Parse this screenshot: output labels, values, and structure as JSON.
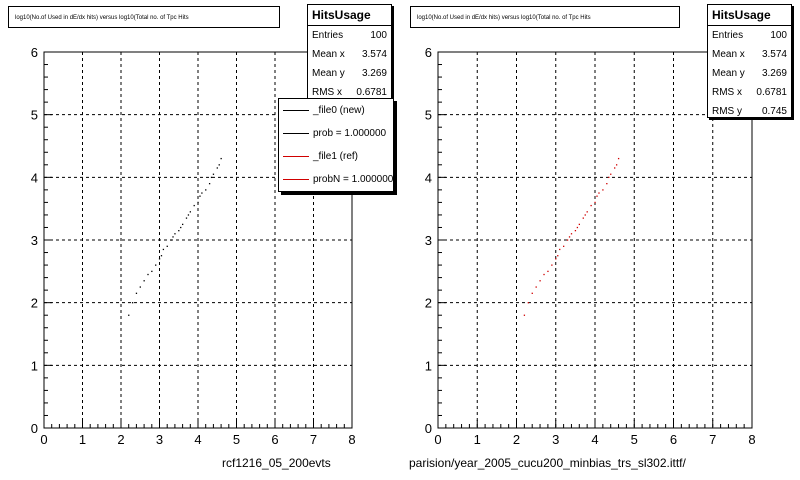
{
  "panels": [
    {
      "title": "log10(No.of Used in dE/dx hits) versus log10(Total no. of Tpc Hits",
      "stats": {
        "name": "HitsUsage",
        "rows": [
          {
            "label": "Entries",
            "value": "100"
          },
          {
            "label": "Mean x",
            "value": "3.574"
          },
          {
            "label": "Mean y",
            "value": "3.269"
          },
          {
            "label": "RMS x",
            "value": "0.6781"
          }
        ]
      },
      "legend": [
        {
          "label": "_file0 (new)",
          "color": "#000000"
        },
        {
          "label": "prob = 1.000000",
          "color": "#000000"
        },
        {
          "label": "_file1 (ref)",
          "color": "#d00000"
        },
        {
          "label": "probN = 1.000000",
          "color": "#d00000"
        }
      ],
      "footer": "rcf1216_05_200evts"
    },
    {
      "title": "log10(No.of Used in dE/dx hits) versus log10(Total no. of Tpc Hits",
      "stats": {
        "name": "HitsUsage",
        "rows": [
          {
            "label": "Entries",
            "value": "100"
          },
          {
            "label": "Mean x",
            "value": "3.574"
          },
          {
            "label": "Mean y",
            "value": "3.269"
          },
          {
            "label": "RMS x",
            "value": "0.6781"
          },
          {
            "label": "RMS y",
            "value": "0.745"
          }
        ]
      },
      "footer": "parision/year_2005_cucu200_minbias_trs_sl302.ittf/"
    }
  ],
  "chart_data": [
    {
      "type": "scatter",
      "title": "log10(No.of Used in dE/dx hits) versus log10(Total no. of Tpc Hits",
      "xlabel": "",
      "ylabel": "",
      "xlim": [
        0,
        8
      ],
      "ylim": [
        0,
        6
      ],
      "xticks": [
        0,
        1,
        2,
        3,
        4,
        5,
        6,
        7,
        8
      ],
      "yticks": [
        0,
        1,
        2,
        3,
        4,
        5,
        6
      ],
      "grid": true,
      "legend_position": "top-right",
      "series": [
        {
          "color": "#000000",
          "points": [
            [
              2.2,
              1.8
            ],
            [
              2.3,
              2.0
            ],
            [
              2.4,
              2.15
            ],
            [
              2.5,
              2.25
            ],
            [
              2.6,
              2.35
            ],
            [
              2.7,
              2.45
            ],
            [
              2.8,
              2.5
            ],
            [
              2.9,
              2.6
            ],
            [
              3.0,
              2.7
            ],
            [
              3.05,
              2.75
            ],
            [
              3.1,
              2.85
            ],
            [
              3.2,
              2.9
            ],
            [
              3.3,
              3.0
            ],
            [
              3.35,
              3.05
            ],
            [
              3.4,
              3.1
            ],
            [
              3.5,
              3.15
            ],
            [
              3.55,
              3.2
            ],
            [
              3.6,
              3.25
            ],
            [
              3.7,
              3.35
            ],
            [
              3.75,
              3.4
            ],
            [
              3.8,
              3.45
            ],
            [
              3.9,
              3.55
            ],
            [
              4.0,
              3.6
            ],
            [
              4.05,
              3.7
            ],
            [
              4.1,
              3.75
            ],
            [
              4.2,
              3.8
            ],
            [
              4.3,
              3.9
            ],
            [
              4.35,
              4.0
            ],
            [
              4.4,
              4.05
            ],
            [
              4.5,
              4.15
            ],
            [
              4.55,
              4.2
            ],
            [
              4.6,
              4.3
            ]
          ]
        }
      ]
    },
    {
      "type": "scatter",
      "title": "log10(No.of Used in dE/dx hits) versus log10(Total no. of Tpc Hits",
      "xlabel": "",
      "ylabel": "",
      "xlim": [
        0,
        8
      ],
      "ylim": [
        0,
        6
      ],
      "xticks": [
        0,
        1,
        2,
        3,
        4,
        5,
        6,
        7,
        8
      ],
      "yticks": [
        0,
        1,
        2,
        3,
        4,
        5,
        6
      ],
      "grid": true,
      "series": [
        {
          "color": "#d00000",
          "points": [
            [
              2.2,
              1.8
            ],
            [
              2.3,
              2.0
            ],
            [
              2.4,
              2.15
            ],
            [
              2.5,
              2.25
            ],
            [
              2.6,
              2.35
            ],
            [
              2.7,
              2.45
            ],
            [
              2.8,
              2.5
            ],
            [
              2.9,
              2.6
            ],
            [
              3.0,
              2.7
            ],
            [
              3.05,
              2.75
            ],
            [
              3.1,
              2.85
            ],
            [
              3.2,
              2.9
            ],
            [
              3.3,
              3.0
            ],
            [
              3.35,
              3.05
            ],
            [
              3.4,
              3.1
            ],
            [
              3.5,
              3.15
            ],
            [
              3.55,
              3.2
            ],
            [
              3.6,
              3.25
            ],
            [
              3.7,
              3.35
            ],
            [
              3.75,
              3.4
            ],
            [
              3.8,
              3.45
            ],
            [
              3.9,
              3.55
            ],
            [
              4.0,
              3.6
            ],
            [
              4.05,
              3.7
            ],
            [
              4.1,
              3.75
            ],
            [
              4.2,
              3.8
            ],
            [
              4.3,
              3.9
            ],
            [
              4.35,
              4.0
            ],
            [
              4.4,
              4.05
            ],
            [
              4.5,
              4.15
            ],
            [
              4.55,
              4.2
            ],
            [
              4.6,
              4.3
            ]
          ]
        }
      ]
    }
  ]
}
